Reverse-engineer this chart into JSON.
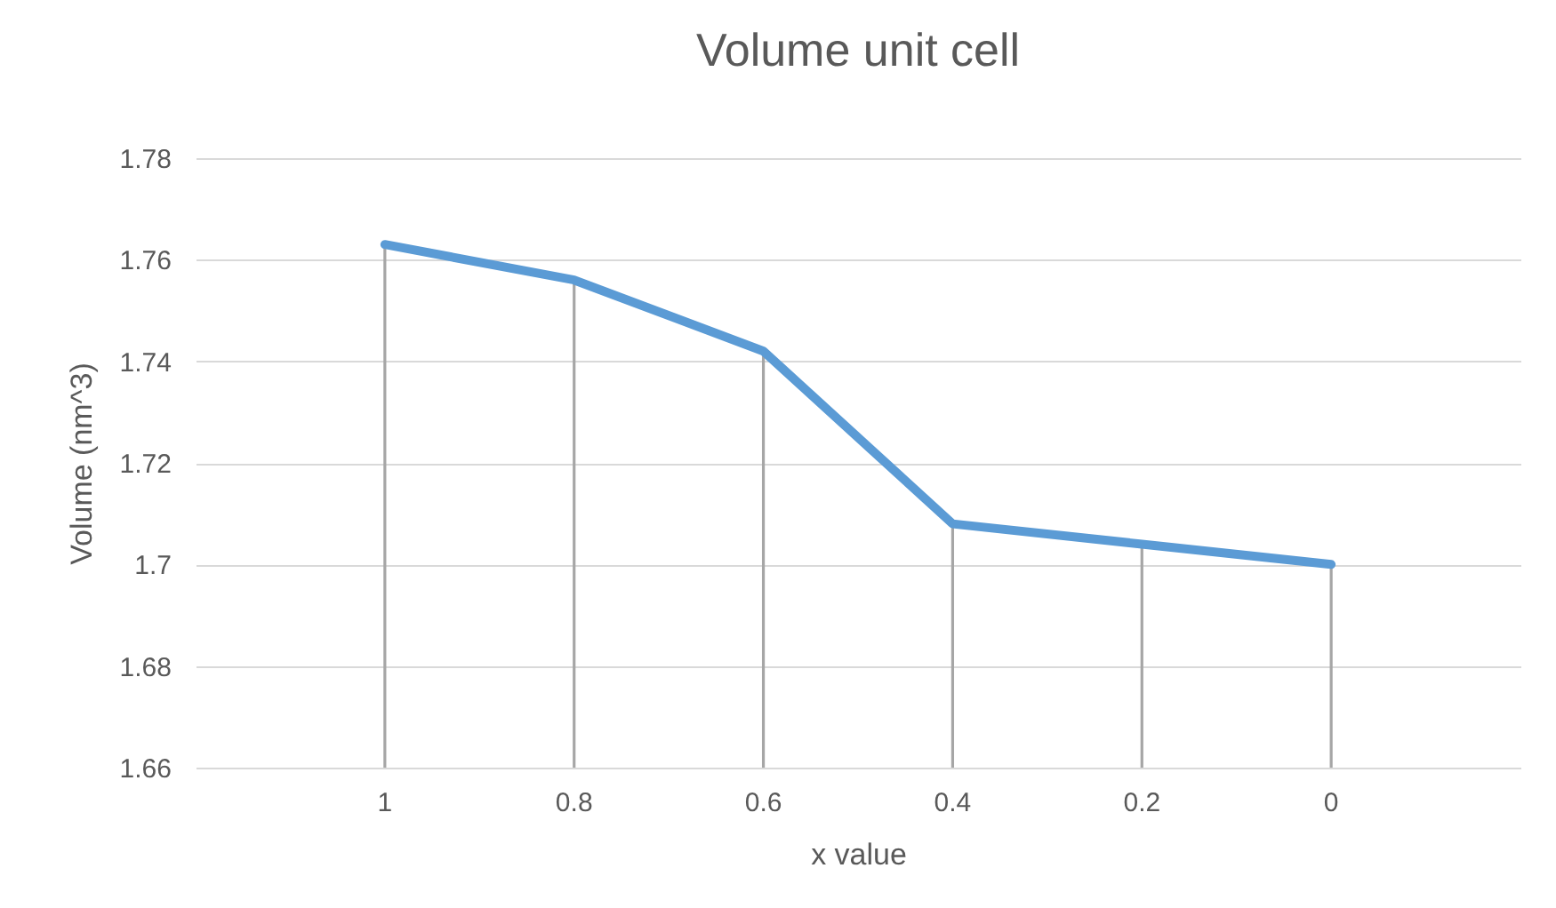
{
  "chart_data": {
    "type": "line",
    "title": "Volume unit cell",
    "xlabel": "x value",
    "ylabel": "Volume (nm^3)",
    "categories": [
      "1",
      "0.8",
      "0.6",
      "0.4",
      "0.2",
      "0"
    ],
    "series": [
      {
        "type": "bar",
        "color": "#a6a6a6",
        "values": [
          1.763,
          1.756,
          1.742,
          1.708,
          1.704,
          1.7
        ]
      },
      {
        "color": "#5b9bd5",
        "values": [
          1.763,
          1.756,
          1.742,
          1.708,
          1.704,
          1.7
        ]
      }
    ],
    "ylim": [
      1.66,
      1.78
    ],
    "yticks": [
      1.66,
      1.68,
      1.7,
      1.72,
      1.74,
      1.76,
      1.78
    ],
    "grid": "y",
    "marker": "none",
    "line_style": "solid"
  }
}
